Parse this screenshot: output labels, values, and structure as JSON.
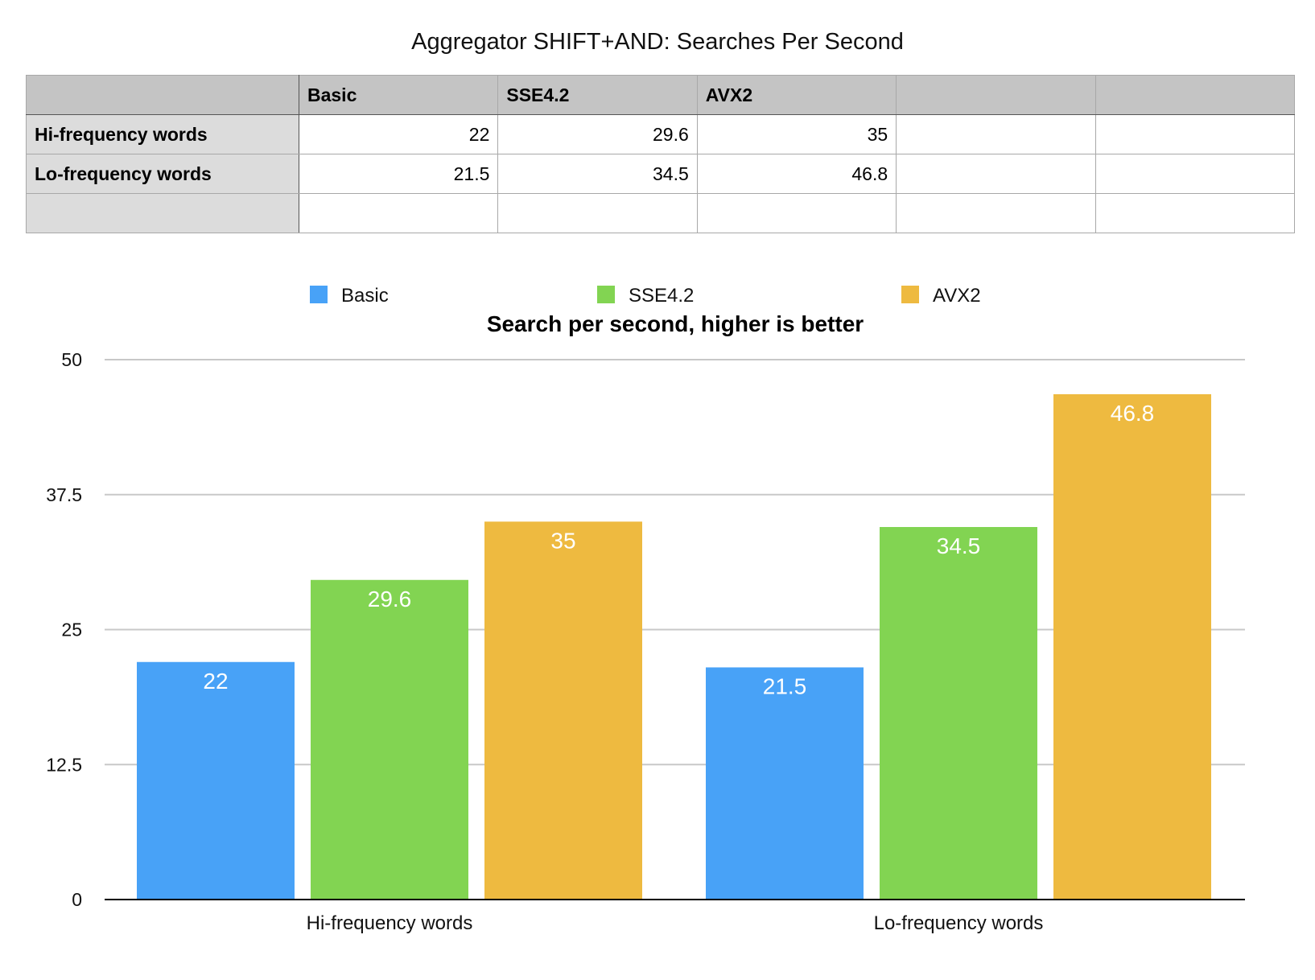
{
  "page": {
    "title": "Aggregator SHIFT+AND: Searches Per Second"
  },
  "table": {
    "columns": [
      "",
      "Basic",
      "SSE4.2",
      "AVX2",
      "",
      ""
    ],
    "rows": [
      {
        "label": "Hi-frequency words",
        "cells": [
          "22",
          "29.6",
          "35",
          "",
          ""
        ]
      },
      {
        "label": "Lo-frequency words",
        "cells": [
          "21.5",
          "34.5",
          "46.8",
          "",
          ""
        ]
      },
      {
        "label": "",
        "cells": [
          "",
          "",
          "",
          "",
          ""
        ]
      }
    ]
  },
  "chart_data": {
    "type": "bar",
    "title": "Search per second, higher is better",
    "categories": [
      "Hi-frequency words",
      "Lo-frequency words"
    ],
    "series": [
      {
        "name": "Basic",
        "color": "#48a2f7",
        "values": [
          22,
          21.5
        ]
      },
      {
        "name": "SSE4.2",
        "color": "#82d452",
        "values": [
          29.6,
          34.5
        ]
      },
      {
        "name": "AVX2",
        "color": "#eeba40",
        "values": [
          35,
          46.8
        ]
      }
    ],
    "xlabel": "",
    "ylabel": "",
    "ylim": [
      0,
      50
    ],
    "yticks": [
      "0",
      "12.5",
      "25",
      "37.5",
      "50"
    ],
    "grid": true,
    "legend": "top"
  }
}
